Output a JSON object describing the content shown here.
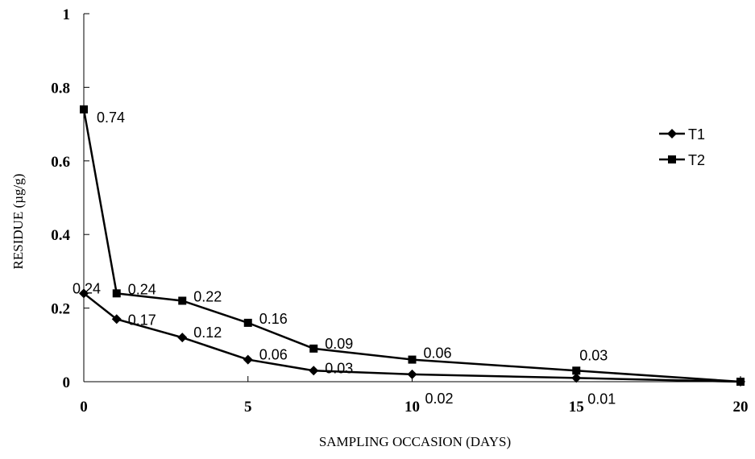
{
  "chart_data": {
    "type": "line",
    "title": "",
    "xlabel": "SAMPLING OCCASION (DAYS)",
    "ylabel": "RESIDUE (µg/g)",
    "xlim": [
      0,
      20
    ],
    "ylim": [
      0,
      1
    ],
    "xticks": [
      "0",
      "5",
      "10",
      "15",
      "20"
    ],
    "yticks": [
      "0",
      "0.2",
      "0.4",
      "0.6",
      "0.8",
      "1"
    ],
    "grid": false,
    "legend_position": "right",
    "series": [
      {
        "name": "T1",
        "marker": "diamond",
        "x": [
          0,
          1,
          3,
          5,
          7,
          10,
          15,
          20
        ],
        "y": [
          0.24,
          0.17,
          0.12,
          0.06,
          0.03,
          0.02,
          0.01,
          0
        ],
        "labels": [
          "0.24",
          "0.17",
          "0.12",
          "0.06",
          "0.03",
          "0.02",
          "0.01",
          ""
        ]
      },
      {
        "name": "T2",
        "marker": "square",
        "x": [
          0,
          1,
          3,
          5,
          7,
          10,
          15,
          20
        ],
        "y": [
          0.74,
          0.24,
          0.22,
          0.16,
          0.09,
          0.06,
          0.03,
          0
        ],
        "labels": [
          "0.74",
          "0.24",
          "0.22",
          "0.16",
          "0.09",
          "0.06",
          "0.03",
          ""
        ]
      }
    ]
  }
}
